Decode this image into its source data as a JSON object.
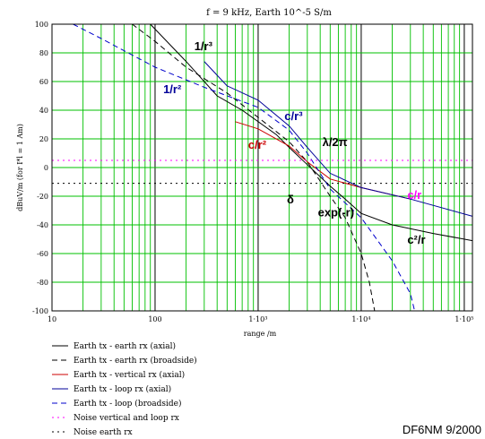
{
  "chart_data": {
    "type": "line",
    "title": "f = 9 kHz, Earth 10^-5 S/m",
    "xlabel": "range /m",
    "ylabel": "dBuV/m (for I*l = 1 Am)",
    "xscale": "log",
    "xlim": [
      10,
      120000
    ],
    "ylim": [
      -100,
      100
    ],
    "xticks": [
      {
        "v": 10,
        "label": "10"
      },
      {
        "v": 100,
        "label": "100"
      },
      {
        "v": 1000,
        "label": "1·10³"
      },
      {
        "v": 10000,
        "label": "1·10⁴"
      },
      {
        "v": 100000,
        "label": "1·10⁵"
      }
    ],
    "yticks": [
      100,
      80,
      60,
      40,
      20,
      0,
      -20,
      -40,
      -60,
      -80,
      -100
    ],
    "grid": true,
    "legend_position": "bottom-left",
    "series": [
      {
        "name": "Earth tx - earth rx (axial)",
        "color": "#000000",
        "dash": "solid",
        "points": [
          [
            90,
            100
          ],
          [
            200,
            74
          ],
          [
            400,
            50
          ],
          [
            700,
            40
          ],
          [
            1500,
            23
          ],
          [
            2000,
            14
          ],
          [
            3000,
            2
          ],
          [
            5000,
            -13
          ],
          [
            7000,
            -22
          ],
          [
            10000,
            -32
          ],
          [
            20000,
            -40
          ],
          [
            50000,
            -46
          ],
          [
            120000,
            -51
          ]
        ]
      },
      {
        "name": "Earth tx - earth rx (broadside)",
        "color": "#000000",
        "dash": "dash",
        "points": [
          [
            60,
            100
          ],
          [
            100,
            88
          ],
          [
            200,
            70
          ],
          [
            500,
            52
          ],
          [
            1000,
            35
          ],
          [
            2000,
            18
          ],
          [
            3000,
            4
          ],
          [
            5000,
            -20
          ],
          [
            7000,
            -35
          ],
          [
            10000,
            -60
          ],
          [
            12000,
            -80
          ],
          [
            13500,
            -100
          ]
        ]
      },
      {
        "name": "Earth tx - vertical rx (axial)",
        "color": "#cc0000",
        "dash": "solid",
        "points": [
          [
            600,
            32
          ],
          [
            1000,
            27
          ],
          [
            2000,
            15
          ],
          [
            3000,
            4
          ],
          [
            5000,
            -8
          ],
          [
            10000,
            -14
          ],
          [
            30000,
            -22
          ]
        ]
      },
      {
        "name": "Earth tx - loop rx (axial)",
        "color": "#000099",
        "dash": "solid",
        "points": [
          [
            300,
            74
          ],
          [
            500,
            57
          ],
          [
            1000,
            47
          ],
          [
            2000,
            29
          ],
          [
            3000,
            14
          ],
          [
            5000,
            -4
          ],
          [
            10000,
            -14
          ],
          [
            30000,
            -22
          ],
          [
            120000,
            -34
          ]
        ]
      },
      {
        "name": "Earth tx - loop (broadside)",
        "color": "#0000cc",
        "dash": "dash",
        "points": [
          [
            16,
            100
          ],
          [
            30,
            90
          ],
          [
            100,
            70
          ],
          [
            300,
            56
          ],
          [
            1000,
            42
          ],
          [
            2000,
            26
          ],
          [
            3000,
            10
          ],
          [
            5000,
            -15
          ],
          [
            10000,
            -35
          ],
          [
            20000,
            -65
          ],
          [
            30000,
            -88
          ],
          [
            33000,
            -100
          ]
        ]
      },
      {
        "name": "Noise vertical and loop rx",
        "color": "#ff00ff",
        "dash": "dot",
        "points": [
          [
            10,
            5
          ],
          [
            120000,
            5
          ]
        ]
      },
      {
        "name": "Noise earth rx",
        "color": "#000000",
        "dash": "dot",
        "points": [
          [
            10,
            -11
          ],
          [
            120000,
            -11
          ]
        ]
      }
    ],
    "annotations": [
      {
        "text": "1/r³",
        "x": 240,
        "y": 82,
        "color": "#000000"
      },
      {
        "text": "1/r²",
        "x": 120,
        "y": 52,
        "color": "#000099"
      },
      {
        "text": "c/r³",
        "x": 1800,
        "y": 33,
        "color": "#000099"
      },
      {
        "text": "c/r²",
        "x": 800,
        "y": 13,
        "color": "#cc0000"
      },
      {
        "text": "λ/2π",
        "x": 4200,
        "y": 15,
        "color": "#000000"
      },
      {
        "text": "δ",
        "x": 1900,
        "y": -25,
        "color": "#000000"
      },
      {
        "text": "exp(-r)",
        "x": 3800,
        "y": -34,
        "color": "#000000"
      },
      {
        "text": "c/r",
        "x": 28000,
        "y": -22,
        "color": "#ff00ff"
      },
      {
        "text": "c²/r",
        "x": 28000,
        "y": -53,
        "color": "#000000"
      }
    ]
  },
  "watermark": "DF6NM 9/2000"
}
